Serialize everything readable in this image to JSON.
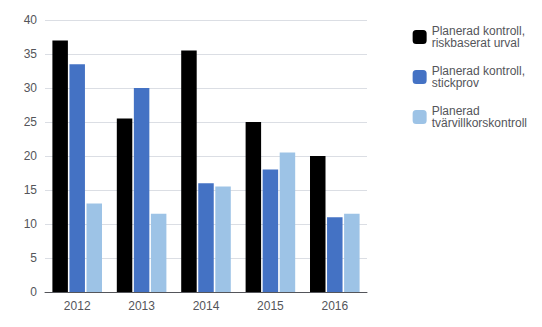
{
  "chart_data": {
    "type": "bar",
    "categories": [
      "2012",
      "2013",
      "2014",
      "2015",
      "2016"
    ],
    "series": [
      {
        "name": "Planerad kontroll,\nriskbaserat urval",
        "color": "#000000",
        "values": [
          37,
          25.5,
          35.5,
          25,
          20
        ]
      },
      {
        "name": "Planerad kontroll,\nstickprov",
        "color": "#4472C4",
        "values": [
          33.5,
          30,
          16,
          18,
          11
        ]
      },
      {
        "name": "Planerad\ntvärvillkorskontroll",
        "color": "#9DC3E6",
        "values": [
          13,
          11.5,
          15.5,
          20.5,
          11.5
        ]
      }
    ],
    "ylim": [
      0,
      40
    ],
    "yticks": [
      0,
      5,
      10,
      15,
      20,
      25,
      30,
      35,
      40
    ],
    "grid": true,
    "legend": "right"
  }
}
